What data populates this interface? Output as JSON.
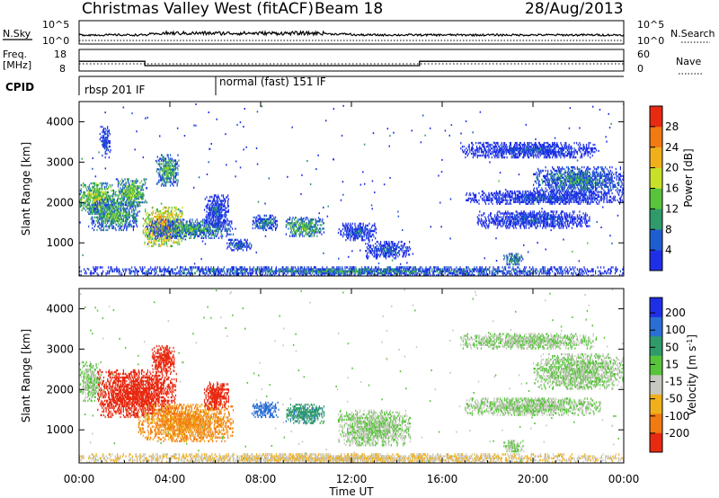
{
  "header": {
    "station": "Christmas Valley West (fitACF)",
    "beam": "Beam 18",
    "date": "28/Aug/2013"
  },
  "top_panels": {
    "nsky_label": "N.Sky",
    "nsky_ticks": [
      "10^5",
      "10^0"
    ],
    "nsearch_label": "N.Search",
    "nsearch_ticks": [
      "10^5",
      "10^0"
    ],
    "freq_label": "Freq.",
    "freq_unit": "[MHz]",
    "freq_ticks": [
      "18",
      "8"
    ],
    "nave_label": "Nave",
    "nave_ticks": [
      "60",
      "0"
    ],
    "cpid_label": "CPID",
    "cpid_segments": [
      {
        "label": "rbsp 201 IF",
        "start_hour": 0,
        "end_hour": 6
      },
      {
        "label": "normal (fast) 151 IF",
        "start_hour": 6,
        "end_hour": 24
      }
    ],
    "freq_steps": [
      {
        "start_hour": 0,
        "end_hour": 2.9,
        "mhz": 12.5
      },
      {
        "start_hour": 2.9,
        "end_hour": 15,
        "mhz": 10.5
      },
      {
        "start_hour": 15,
        "end_hour": 24,
        "mhz": 12.5
      }
    ]
  },
  "chart_data": [
    {
      "type": "heatmap",
      "name": "power",
      "ylabel": "Slant Range [km]",
      "ylim": [
        180,
        4500
      ],
      "yticks": [
        1000,
        2000,
        3000,
        4000
      ],
      "xlim": [
        0,
        24
      ],
      "colorbar": {
        "label": "Power [dB]",
        "ticks": [
          4,
          8,
          12,
          16,
          20,
          24,
          28
        ],
        "range": [
          0,
          32
        ],
        "colors": [
          "#1f2fe6",
          "#1f5ed0",
          "#2f9b6a",
          "#58c43c",
          "#c8e02a",
          "#f0b01c",
          "#f27a12",
          "#e82a12"
        ]
      },
      "regions": [
        {
          "t0": 0.0,
          "t1": 1.6,
          "r0": 1700,
          "r1": 2500,
          "level": 18
        },
        {
          "t0": 0.4,
          "t1": 2.6,
          "r0": 1300,
          "r1": 2100,
          "level": 14
        },
        {
          "t0": 0.9,
          "t1": 1.4,
          "r0": 3100,
          "r1": 3900,
          "level": 6
        },
        {
          "t0": 1.6,
          "t1": 3.0,
          "r0": 1900,
          "r1": 2600,
          "level": 16
        },
        {
          "t0": 2.8,
          "t1": 4.6,
          "r0": 900,
          "r1": 1900,
          "level": 24
        },
        {
          "t0": 3.0,
          "t1": 6.8,
          "r0": 1100,
          "r1": 1600,
          "level": 12
        },
        {
          "t0": 3.4,
          "t1": 4.4,
          "r0": 2400,
          "r1": 3200,
          "level": 14
        },
        {
          "t0": 5.5,
          "t1": 6.6,
          "r0": 1400,
          "r1": 2200,
          "level": 6
        },
        {
          "t0": 6.5,
          "t1": 7.6,
          "r0": 800,
          "r1": 1100,
          "level": 8
        },
        {
          "t0": 7.6,
          "t1": 8.8,
          "r0": 1300,
          "r1": 1700,
          "level": 10
        },
        {
          "t0": 9.1,
          "t1": 10.8,
          "r0": 1150,
          "r1": 1650,
          "level": 14
        },
        {
          "t0": 11.4,
          "t1": 13.2,
          "r0": 1050,
          "r1": 1500,
          "level": 6
        },
        {
          "t0": 12.6,
          "t1": 14.6,
          "r0": 600,
          "r1": 1050,
          "level": 6
        },
        {
          "t0": 16.8,
          "t1": 22.8,
          "r0": 3100,
          "r1": 3500,
          "level": 5
        },
        {
          "t0": 20.0,
          "t1": 24.0,
          "r0": 2200,
          "r1": 2900,
          "level": 10
        },
        {
          "t0": 17.5,
          "t1": 22.5,
          "r0": 1350,
          "r1": 1800,
          "level": 5
        },
        {
          "t0": 17.0,
          "t1": 24.0,
          "r0": 1950,
          "r1": 2300,
          "level": 5
        },
        {
          "t0": 0.0,
          "t1": 24.0,
          "r0": 180,
          "r1": 420,
          "level": 9
        },
        {
          "t0": 18.7,
          "t1": 19.6,
          "r0": 450,
          "r1": 750,
          "level": 12
        }
      ]
    },
    {
      "type": "heatmap",
      "name": "velocity",
      "ylabel": "Slant Range [km]",
      "ylim": [
        180,
        4500
      ],
      "yticks": [
        1000,
        2000,
        3000,
        4000
      ],
      "xlim": [
        0,
        24
      ],
      "xticks": [
        "00:00",
        "04:00",
        "08:00",
        "12:00",
        "16:00",
        "20:00",
        "00:00"
      ],
      "xlabel": "Time UT",
      "colorbar": {
        "label": "Velocity [m s^-1]",
        "ticks": [
          200,
          100,
          50,
          15,
          -15,
          -50,
          -100,
          -200
        ],
        "colors": [
          "#1f2fe6",
          "#2a6fd4",
          "#2f9b6a",
          "#58c43c",
          "#c8c8c0",
          "#f0b01c",
          "#f27a12",
          "#e82a12"
        ]
      },
      "regions": [
        {
          "t0": 0.0,
          "t1": 1.0,
          "r0": 1700,
          "r1": 2700,
          "level": 0
        },
        {
          "t0": 0.8,
          "t1": 4.3,
          "r0": 1300,
          "r1": 2500,
          "level": -250
        },
        {
          "t0": 3.2,
          "t1": 4.2,
          "r0": 2400,
          "r1": 3100,
          "level": -250
        },
        {
          "t0": 2.6,
          "t1": 6.8,
          "r0": 700,
          "r1": 1650,
          "level": -80
        },
        {
          "t0": 5.5,
          "t1": 6.6,
          "r0": 1500,
          "r1": 2200,
          "level": -250
        },
        {
          "t0": 7.6,
          "t1": 8.8,
          "r0": 1300,
          "r1": 1700,
          "level": 120
        },
        {
          "t0": 9.1,
          "t1": 10.8,
          "r0": 1150,
          "r1": 1650,
          "level": 60
        },
        {
          "t0": 11.4,
          "t1": 14.6,
          "r0": 600,
          "r1": 1500,
          "level": 0
        },
        {
          "t0": 16.8,
          "t1": 22.8,
          "r0": 3000,
          "r1": 3400,
          "level": 0
        },
        {
          "t0": 20.0,
          "t1": 24.0,
          "r0": 2000,
          "r1": 2900,
          "level": 0
        },
        {
          "t0": 17.0,
          "t1": 23.0,
          "r0": 1350,
          "r1": 1800,
          "level": 0
        },
        {
          "t0": 0.0,
          "t1": 24.0,
          "r0": 180,
          "r1": 420,
          "level": -30
        },
        {
          "t0": 18.7,
          "t1": 19.6,
          "r0": 450,
          "r1": 750,
          "level": 0
        }
      ]
    }
  ]
}
